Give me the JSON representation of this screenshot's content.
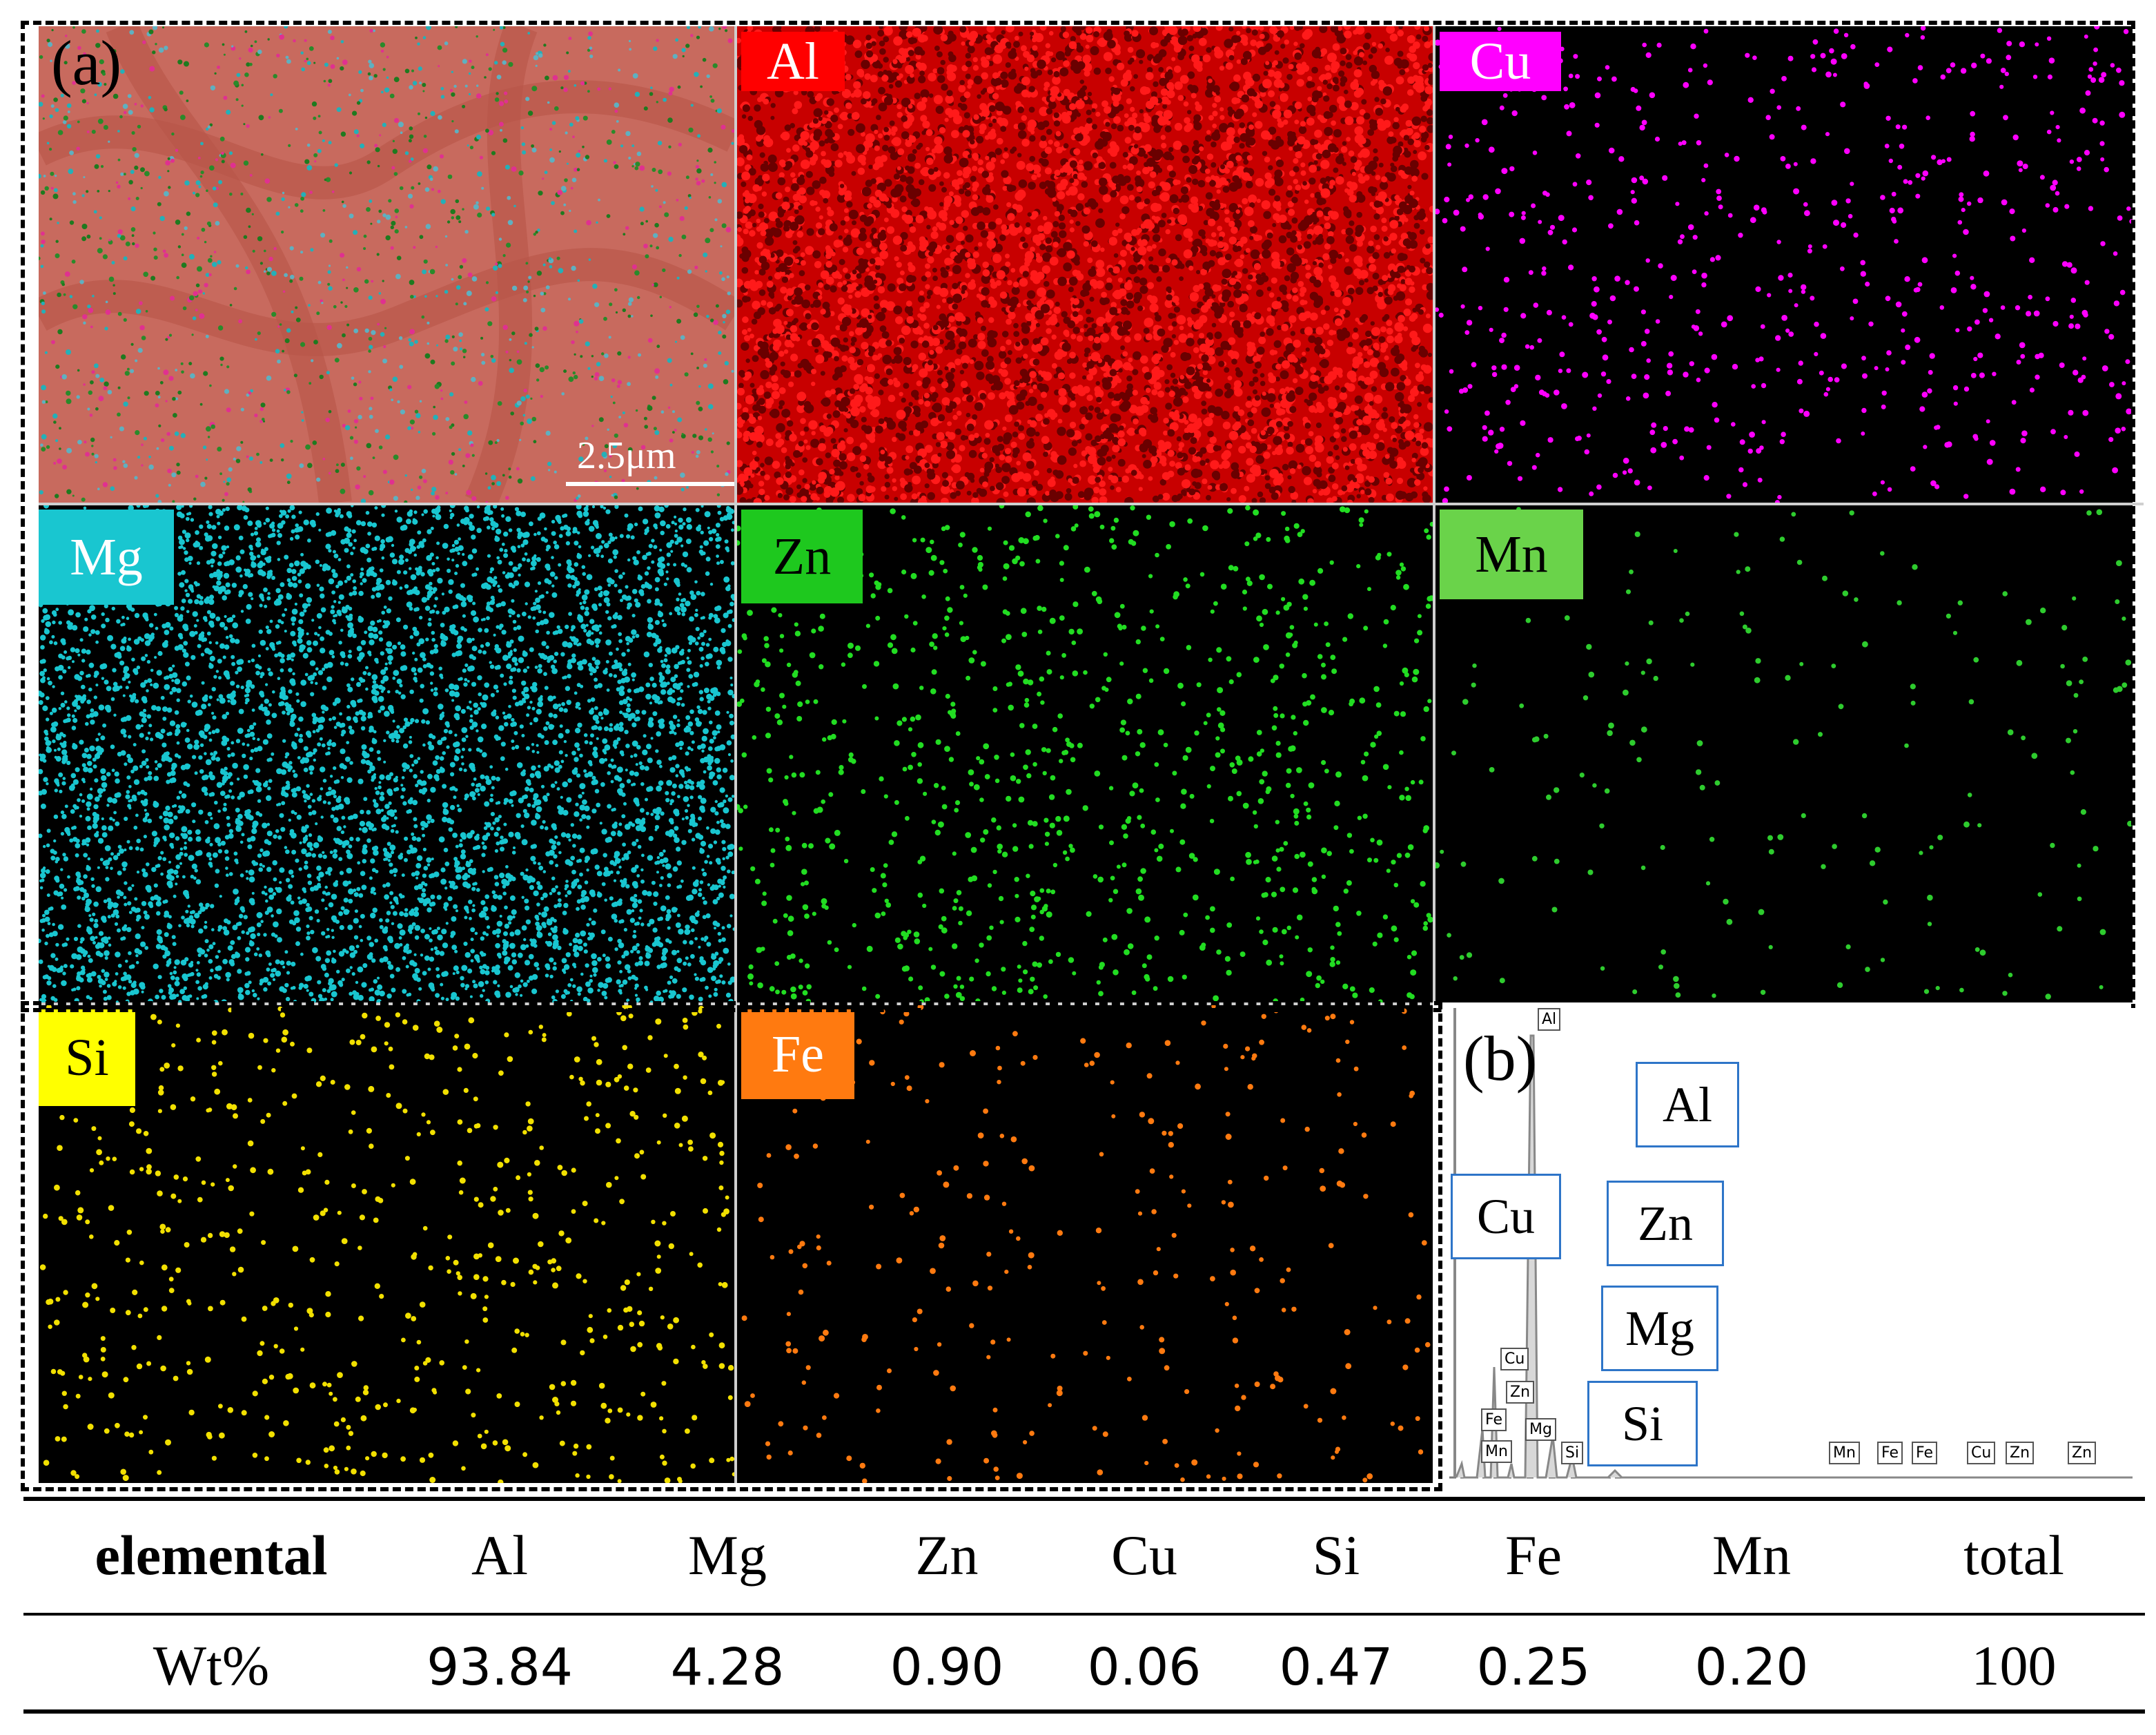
{
  "figure": {
    "panel_a_label": "(a)",
    "panel_b_label": "(b)",
    "scale_bar": "2.5μm"
  },
  "maps": [
    {
      "element": "Al",
      "dot_color": "#ff1010",
      "tag_bg": "#ff0000",
      "tag_text": "#ffffff",
      "bg": "#c80000"
    },
    {
      "element": "Cu",
      "dot_color": "#ff00ff",
      "tag_bg": "#ff00ff",
      "tag_text": "#ffffff",
      "bg": "#000000"
    },
    {
      "element": "Mg",
      "dot_color": "#19c6d0",
      "tag_bg": "#19c6d0",
      "tag_text": "#ffffff",
      "bg": "#000000"
    },
    {
      "element": "Zn",
      "dot_color": "#22dd22",
      "tag_bg": "#1ec81e",
      "tag_text": "#000000",
      "bg": "#000000"
    },
    {
      "element": "Mn",
      "dot_color": "#2ecc2e",
      "tag_bg": "#6ad34a",
      "tag_text": "#000000",
      "bg": "#000000"
    },
    {
      "element": "Si",
      "dot_color": "#f2e000",
      "tag_bg": "#ffff00",
      "tag_text": "#000000",
      "bg": "#000000"
    },
    {
      "element": "Fe",
      "dot_color": "#ff7a10",
      "tag_bg": "#ff7a10",
      "tag_text": "#ffffff",
      "bg": "#000000"
    }
  ],
  "spectrum": {
    "callouts": [
      "Al",
      "Cu",
      "Zn",
      "Mg",
      "Si"
    ],
    "peak_tags": [
      "Al",
      "Cu",
      "Zn",
      "Fe",
      "Mg",
      "Mn",
      "Si",
      "Mn",
      "Fe",
      "Fe",
      "Cu",
      "Zn",
      "Zn"
    ]
  },
  "table": {
    "headers": [
      "elemental",
      "Al",
      "Mg",
      "Zn",
      "Cu",
      "Si",
      "Fe",
      "Mn",
      "total"
    ],
    "row_label": "Wt%",
    "values": [
      "93.84",
      "4.28",
      "0.90",
      "0.06",
      "0.47",
      "0.25",
      "0.20",
      "100"
    ]
  }
}
